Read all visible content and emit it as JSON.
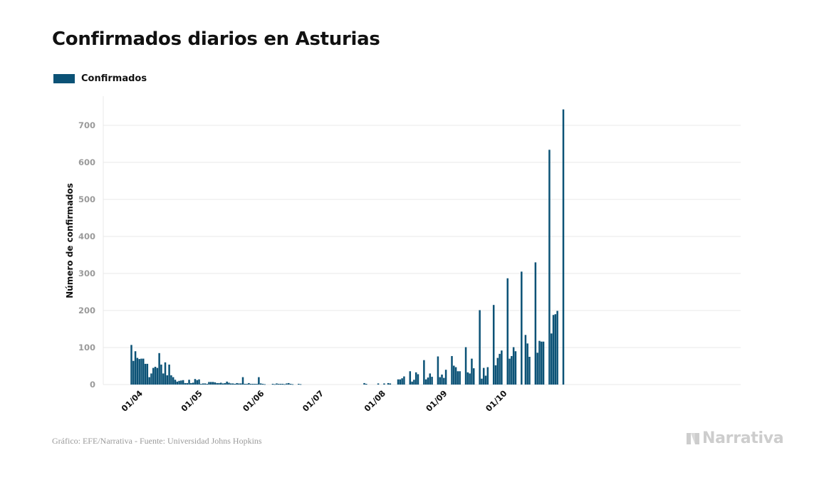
{
  "header": {
    "title": "Confirmados diarios en Asturias"
  },
  "legend": {
    "label": "Confirmados"
  },
  "colors": {
    "bar": "#0b5276",
    "grid": "#e9e9e9",
    "tick": "#9a9a9a",
    "brand": "#cdcdcd"
  },
  "footer": {
    "source": "Gráfico: EFE/Narrativa - Fuente: Universidad Johns Hopkins",
    "brand": "Narrativa",
    "brand_icon": "narrativa-logo-icon"
  },
  "chart_data": {
    "type": "bar",
    "ylabel": "Número de confirmados",
    "xlabel": "",
    "ylim": [
      0,
      780
    ],
    "yticks": [
      0,
      100,
      200,
      300,
      400,
      500,
      600,
      700
    ],
    "grid": true,
    "legend_position": "top-left",
    "xticks": [
      {
        "date": "2020-04-01",
        "label": "01/04"
      },
      {
        "date": "2020-05-01",
        "label": "01/05"
      },
      {
        "date": "2020-06-01",
        "label": "01/06"
      },
      {
        "date": "2020-07-01",
        "label": "01/07"
      },
      {
        "date": "2020-08-01",
        "label": "01/08"
      },
      {
        "date": "2020-09-01",
        "label": "01/09"
      },
      {
        "date": "2020-10-01",
        "label": "01/10"
      }
    ],
    "series": [
      {
        "name": "Confirmados",
        "start_date": "2020-03-29",
        "values": [
          107,
          64,
          90,
          72,
          69,
          70,
          70,
          56,
          56,
          20,
          30,
          45,
          48,
          45,
          85,
          54,
          30,
          60,
          25,
          54,
          25,
          20,
          13,
          8,
          10,
          11,
          12,
          4,
          4,
          13,
          4,
          5,
          15,
          12,
          14,
          2,
          3,
          3,
          2,
          7,
          7,
          7,
          6,
          4,
          4,
          5,
          3,
          4,
          8,
          5,
          3,
          3,
          2,
          4,
          3,
          3,
          20,
          2,
          2,
          4,
          2,
          2,
          2,
          2,
          20,
          3,
          2,
          1,
          0,
          0,
          0,
          2,
          1,
          3,
          2,
          2,
          2,
          1,
          3,
          4,
          2,
          1,
          0,
          0,
          2,
          1,
          0,
          0,
          0,
          0,
          0,
          0,
          0,
          0,
          0,
          0,
          0,
          0,
          0,
          0,
          0,
          0,
          0,
          0,
          0,
          0,
          0,
          0,
          0,
          0,
          0,
          0,
          0,
          0,
          0,
          0,
          0,
          4,
          2,
          0,
          0,
          0,
          0,
          0,
          3,
          0,
          0,
          3,
          0,
          4,
          3,
          0,
          0,
          0,
          14,
          14,
          17,
          22,
          0,
          0,
          36,
          8,
          13,
          33,
          28,
          0,
          0,
          66,
          14,
          19,
          30,
          21,
          0,
          0,
          76,
          20,
          27,
          18,
          40,
          0,
          0,
          77,
          51,
          47,
          36,
          36,
          0,
          0,
          101,
          33,
          30,
          70,
          44,
          0,
          0,
          201,
          16,
          45,
          24,
          47,
          0,
          0,
          215,
          52,
          72,
          83,
          92,
          0,
          0,
          287,
          70,
          77,
          101,
          90,
          0,
          0,
          305,
          0,
          134,
          111,
          75,
          0,
          0,
          330,
          86,
          118,
          116,
          116,
          0,
          0,
          634,
          138,
          188,
          190,
          199,
          0,
          0,
          743
        ]
      }
    ]
  }
}
